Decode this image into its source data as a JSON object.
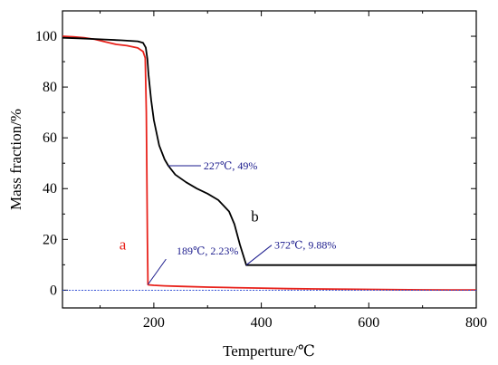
{
  "chart_data": {
    "type": "line",
    "xlabel": "Temperture/℃",
    "ylabel": "Mass fraction/%",
    "xlim": [
      30,
      800
    ],
    "ylim": [
      -7,
      110
    ],
    "xticks": [
      200,
      400,
      600,
      800
    ],
    "yticks": [
      0,
      20,
      40,
      60,
      80,
      100
    ],
    "grid": false,
    "colors": {
      "a": "#e8221b",
      "b": "#000000",
      "baseline": "#1f3fd0",
      "annotation": "#1a1a8c"
    },
    "series": [
      {
        "name": "a",
        "x": [
          30,
          50,
          70,
          90,
          110,
          130,
          150,
          170,
          180,
          184,
          186,
          188,
          189,
          190,
          200,
          220,
          250,
          300,
          350,
          400,
          450,
          500,
          550,
          600,
          650,
          700,
          750,
          800
        ],
        "y": [
          100,
          99.8,
          99.4,
          98.8,
          97.8,
          96.8,
          96.3,
          95.4,
          94.0,
          91.5,
          70,
          20,
          2.23,
          2.1,
          1.9,
          1.7,
          1.5,
          1.2,
          1.0,
          0.8,
          0.6,
          0.5,
          0.4,
          0.3,
          0.2,
          0.15,
          0.1,
          0.1
        ]
      },
      {
        "name": "b",
        "x": [
          30,
          60,
          100,
          140,
          170,
          180,
          185,
          188,
          190,
          195,
          200,
          210,
          220,
          227,
          240,
          260,
          280,
          300,
          320,
          340,
          350,
          360,
          372,
          400,
          500,
          600,
          700,
          800
        ],
        "y": [
          99.4,
          99.2,
          98.8,
          98.4,
          98.0,
          97.4,
          95.5,
          91,
          85,
          75,
          67,
          57,
          51.5,
          49,
          45.5,
          42.5,
          40,
          38,
          35.5,
          31,
          26,
          18,
          9.88,
          9.88,
          9.88,
          9.88,
          9.88,
          9.88
        ]
      },
      {
        "name": "baseline",
        "x": [
          30,
          800
        ],
        "y": [
          0,
          0
        ]
      }
    ],
    "annotations": [
      {
        "text": "227℃, 49%",
        "x": 227,
        "y": 49
      },
      {
        "text": "189℃, 2.23%",
        "x": 189,
        "y": 2.23
      },
      {
        "text": "372℃, 9.88%",
        "x": 372,
        "y": 9.88
      }
    ],
    "curve_labels": [
      {
        "text": "a",
        "series": "a"
      },
      {
        "text": "b",
        "series": "b"
      }
    ]
  }
}
